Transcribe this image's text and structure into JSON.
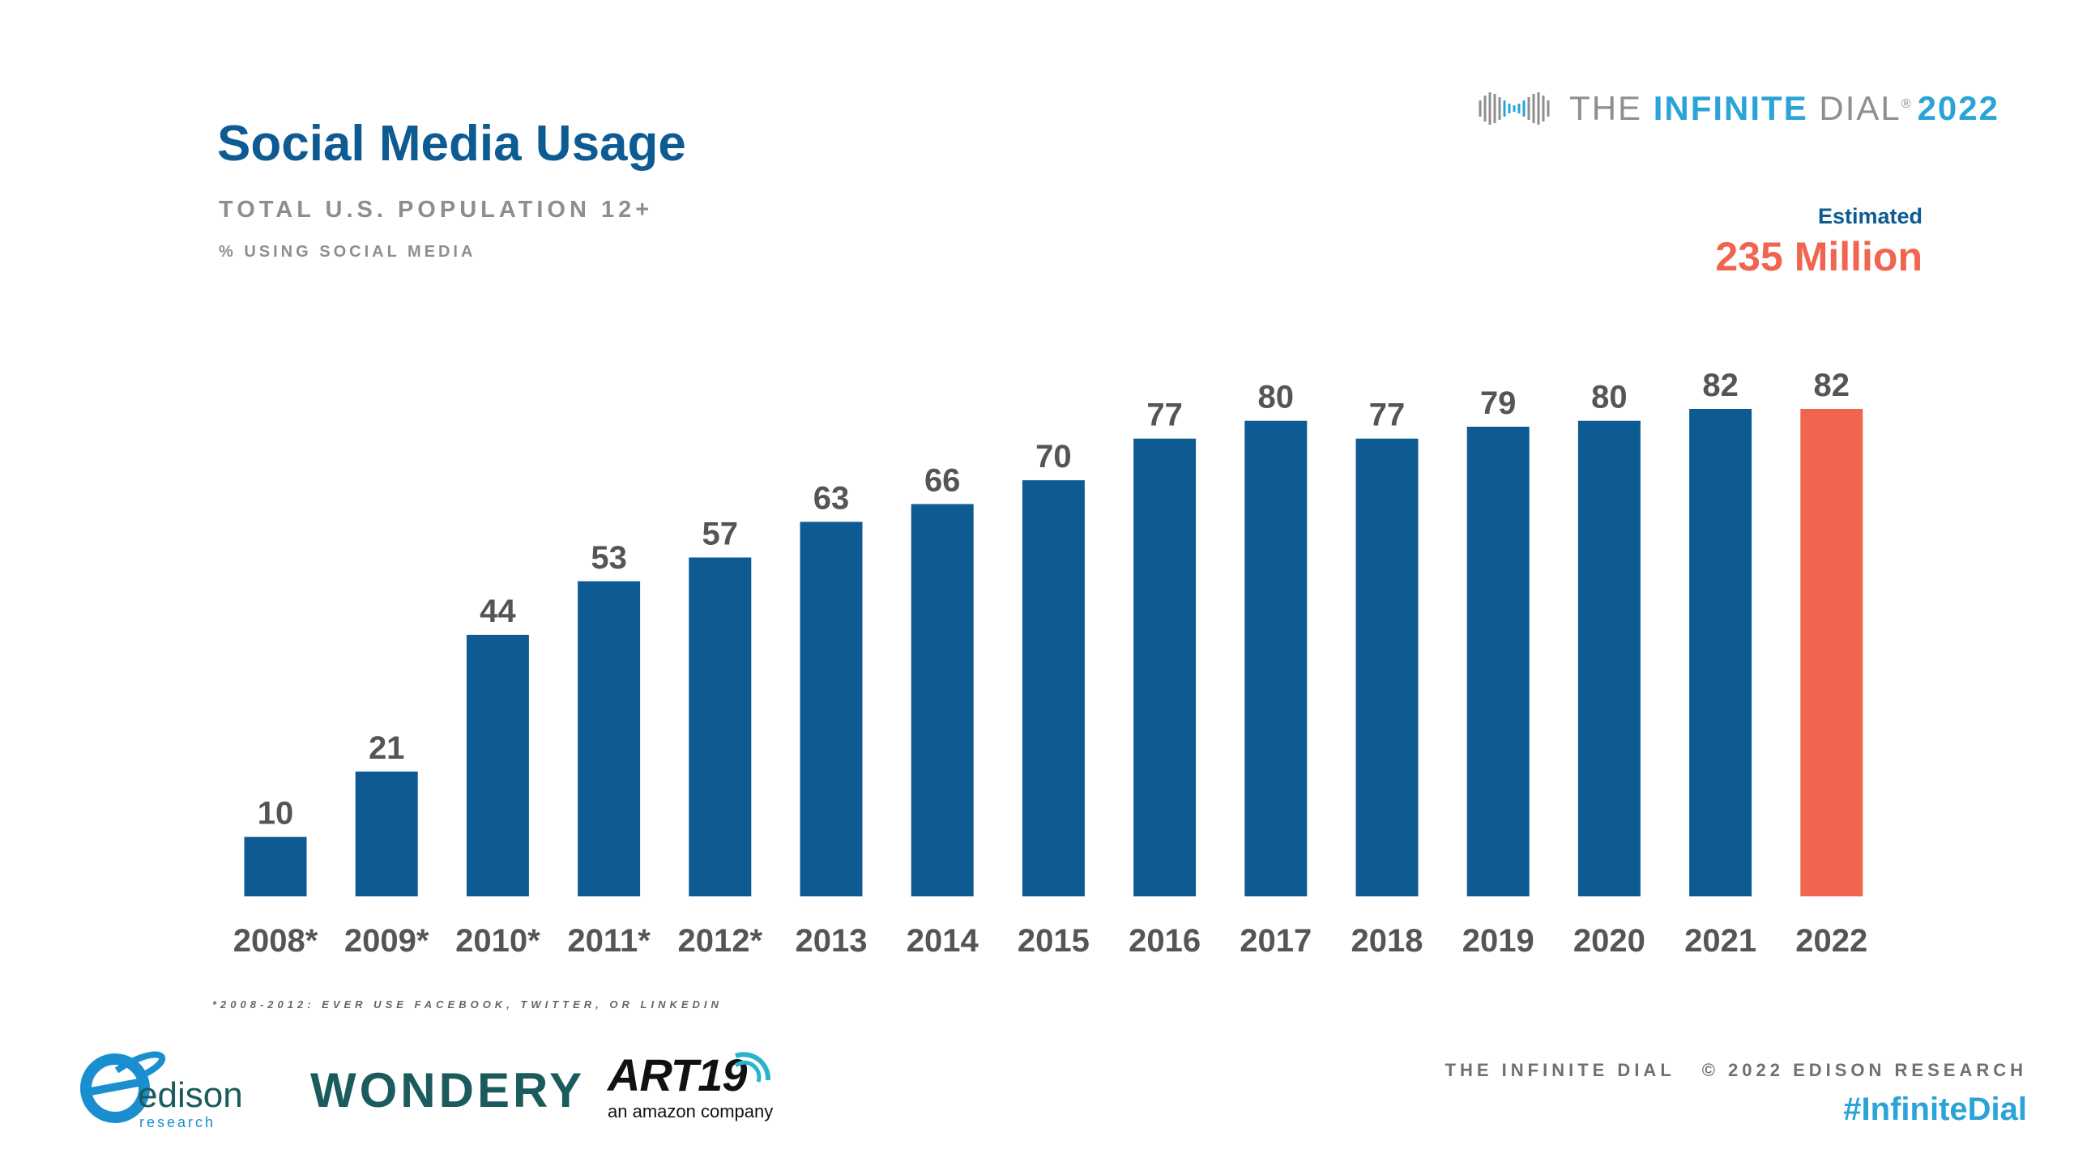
{
  "header": {
    "title": "Social Media Usage",
    "subtitle": "TOTAL U.S. POPULATION 12+",
    "metric_label": "% USING SOCIAL MEDIA"
  },
  "brand": {
    "the": "THE",
    "infinite": "INFINITE",
    "dial": "DIAL",
    "registered": "®",
    "year": "2022",
    "icon": "infinity-loop-icon"
  },
  "estimate": {
    "label": "Estimated",
    "value": "235 Million"
  },
  "chart_data": {
    "type": "bar",
    "title": "Social Media Usage",
    "ylabel": "% using social media",
    "xlabel": "",
    "categories": [
      "2008*",
      "2009*",
      "2010*",
      "2011*",
      "2012*",
      "2013",
      "2014",
      "2015",
      "2016",
      "2017",
      "2018",
      "2019",
      "2020",
      "2021",
      "2022"
    ],
    "values": [
      10,
      21,
      44,
      53,
      57,
      63,
      66,
      70,
      77,
      80,
      77,
      79,
      80,
      82,
      82
    ],
    "highlight_index": 14,
    "ylim": [
      0,
      82
    ],
    "grid": false,
    "colors": {
      "bar": "#0e5b94",
      "highlight": "#f16550",
      "label": "#555555"
    }
  },
  "footnote": "*2008-2012: EVER USE FACEBOOK, TWITTER, OR LINKEDIN",
  "logos": {
    "edison_name": "edison",
    "edison_sub": "research",
    "wondery": "WONDERY",
    "art19": "ART19",
    "art19_sub": "an amazon company"
  },
  "footer": {
    "credit": "THE INFINITE DIAL   © 2022 EDISON RESEARCH",
    "hashtag": "#InfiniteDial"
  },
  "colors": {
    "primary_blue": "#0e5b94",
    "accent_red": "#f16550",
    "light_blue": "#2aa3d7",
    "gray": "#8e8e8e"
  }
}
